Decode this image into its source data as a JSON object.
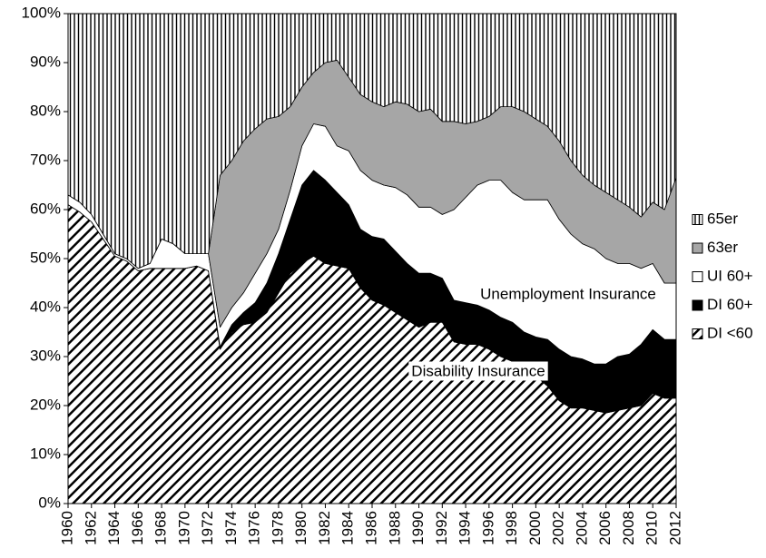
{
  "chart_data": {
    "type": "stacked-area",
    "x": [
      1960,
      1961,
      1962,
      1963,
      1964,
      1965,
      1966,
      1967,
      1968,
      1969,
      1970,
      1971,
      1972,
      1973,
      1974,
      1975,
      1976,
      1977,
      1978,
      1979,
      1980,
      1981,
      1982,
      1983,
      1984,
      1985,
      1986,
      1987,
      1988,
      1989,
      1990,
      1991,
      1992,
      1993,
      1994,
      1995,
      1996,
      1997,
      1998,
      1999,
      2000,
      2001,
      2002,
      2003,
      2004,
      2005,
      2006,
      2007,
      2008,
      2009,
      2010,
      2011,
      2012
    ],
    "xlim": [
      1960,
      2012
    ],
    "xticks": [
      1960,
      1962,
      1964,
      1966,
      1968,
      1970,
      1972,
      1974,
      1976,
      1978,
      1980,
      1982,
      1984,
      1986,
      1988,
      1990,
      1992,
      1994,
      1996,
      1998,
      2000,
      2002,
      2004,
      2006,
      2008,
      2010,
      2012
    ],
    "ylim": [
      0,
      100
    ],
    "yticks": [
      {
        "value": 0,
        "label": "0%"
      },
      {
        "value": 10,
        "label": "10%"
      },
      {
        "value": 20,
        "label": "20%"
      },
      {
        "value": 30,
        "label": "30%"
      },
      {
        "value": 40,
        "label": "40%"
      },
      {
        "value": 50,
        "label": "50%"
      },
      {
        "value": 60,
        "label": "60%"
      },
      {
        "value": 70,
        "label": "70%"
      },
      {
        "value": 80,
        "label": "80%"
      },
      {
        "value": 90,
        "label": "90%"
      },
      {
        "value": 100,
        "label": "100%"
      }
    ],
    "series": [
      {
        "name": "DI <60",
        "color": "#000000",
        "pattern": "diagonal",
        "values": [
          61,
          59.5,
          57.5,
          54,
          50.5,
          49.5,
          47.5,
          48,
          48,
          48,
          48,
          48.5,
          47.5,
          31.5,
          35,
          36.5,
          37,
          39,
          43,
          47,
          49,
          50.5,
          49,
          48.5,
          48,
          44,
          41.5,
          40.5,
          39,
          37.5,
          36,
          37,
          37,
          33,
          32.5,
          32.5,
          31.5,
          30,
          29,
          27.5,
          26,
          24,
          21,
          19.5,
          19.5,
          19,
          18.5,
          19,
          19.5,
          20,
          22.5,
          21.5,
          21.5
        ]
      },
      {
        "name": "DI 60+",
        "color": "#000000",
        "pattern": "solid",
        "values": [
          0,
          0,
          0,
          0,
          0,
          0,
          0,
          0,
          0,
          0,
          0,
          0,
          0,
          0.5,
          1.5,
          2.5,
          4,
          6,
          8,
          11,
          16,
          17.5,
          17,
          15,
          13,
          12,
          13,
          13.5,
          12.5,
          11.5,
          11,
          10,
          9,
          8.5,
          8.5,
          8,
          8,
          8,
          8,
          7.5,
          8,
          9.5,
          10.5,
          10.5,
          10,
          9.5,
          10,
          11,
          11,
          12.5,
          13,
          12,
          12
        ]
      },
      {
        "name": "UI 60+",
        "color": "#ffffff",
        "pattern": "solid",
        "values": [
          2,
          2,
          1.5,
          1,
          0.5,
          0.5,
          0.5,
          1,
          6,
          5,
          3,
          2.5,
          3.5,
          4,
          3.5,
          4,
          6,
          6,
          5,
          6,
          8,
          9.5,
          11,
          9.5,
          11,
          12,
          11.5,
          11,
          13,
          14,
          13.5,
          13.5,
          13,
          18.5,
          21.5,
          24.5,
          26.5,
          28,
          26.5,
          27,
          28,
          28.5,
          26.5,
          25,
          23.5,
          23.5,
          21.5,
          19,
          18.5,
          15.5,
          13.5,
          11.5,
          11.5
        ]
      },
      {
        "name": "63er",
        "color": "#a6a6a6",
        "pattern": "solid",
        "values": [
          0,
          0,
          0,
          0,
          0,
          0,
          0,
          0,
          0,
          0,
          0,
          0,
          0,
          31,
          30,
          31,
          29.5,
          27.5,
          23,
          17,
          12,
          10.5,
          13,
          17.5,
          15,
          15.5,
          16,
          16,
          17.5,
          18.5,
          19.5,
          20,
          19,
          18,
          15,
          13,
          13,
          15,
          17.5,
          18,
          16.5,
          15,
          16,
          15,
          14,
          13,
          13.5,
          13,
          11.5,
          10.5,
          12.5,
          15,
          21.5
        ]
      },
      {
        "name": "65er",
        "color": "#000000",
        "pattern": "vertical",
        "values": [
          37,
          38.5,
          41,
          45,
          49,
          50,
          52,
          51,
          46,
          47,
          49,
          49,
          49,
          33,
          30,
          26,
          23.5,
          21.5,
          21,
          19,
          15,
          12,
          10,
          9.5,
          13,
          16.5,
          18,
          19,
          18,
          18.5,
          20,
          19.5,
          22,
          22,
          22.5,
          22,
          21,
          19,
          19,
          20,
          21.5,
          23,
          26,
          30,
          33,
          35,
          36.5,
          38,
          39.5,
          41.5,
          38.5,
          40,
          33.5
        ]
      }
    ],
    "annotations": [
      "Unemployment Insurance",
      "Disability Insurance"
    ],
    "legend": "right"
  }
}
